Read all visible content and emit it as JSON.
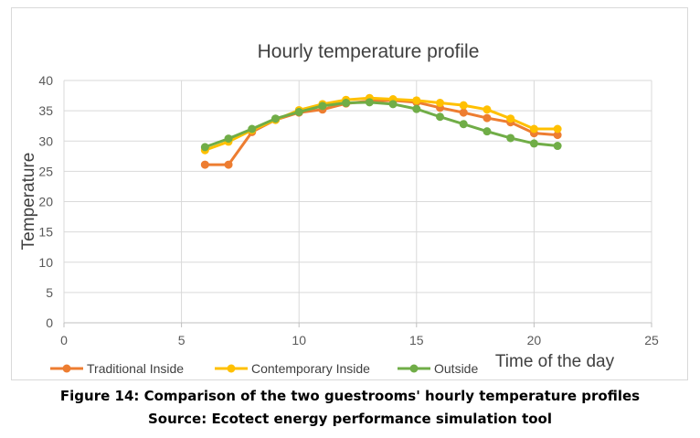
{
  "chart_data": {
    "type": "line",
    "title": "Hourly temperature profile",
    "xlabel": "Time of the day",
    "ylabel": "Temperature",
    "xlim": [
      0,
      25
    ],
    "ylim": [
      0,
      40
    ],
    "xticks": [
      0,
      5,
      10,
      15,
      20,
      25
    ],
    "yticks": [
      0,
      5,
      10,
      15,
      20,
      25,
      30,
      35,
      40
    ],
    "grid": true,
    "legend_position": "bottom-left",
    "x": [
      6,
      7,
      8,
      9,
      10,
      11,
      12,
      13,
      14,
      15,
      16,
      17,
      18,
      19,
      20,
      21
    ],
    "series": [
      {
        "name": "Traditional Inside",
        "color": "#ED7D31",
        "values": [
          26.1,
          26.1,
          31.5,
          33.5,
          34.7,
          35.2,
          36.2,
          36.6,
          36.7,
          36.4,
          35.5,
          34.7,
          33.8,
          33.1,
          31.3,
          31.0
        ]
      },
      {
        "name": "Contemporary Inside",
        "color": "#FFC000",
        "values": [
          28.5,
          29.9,
          31.8,
          33.5,
          35.1,
          36.1,
          36.8,
          37.1,
          36.9,
          36.7,
          36.3,
          35.9,
          35.2,
          33.7,
          32.0,
          32.0
        ]
      },
      {
        "name": "Outside",
        "color": "#70AD47",
        "values": [
          29.0,
          30.4,
          32.0,
          33.7,
          34.8,
          35.8,
          36.3,
          36.4,
          36.1,
          35.3,
          34.0,
          32.8,
          31.6,
          30.5,
          29.6,
          29.2
        ]
      }
    ]
  },
  "caption": {
    "line1": "Figure 14: Comparison of the two guestrooms' hourly temperature profiles",
    "line2": "Source: Ecotect energy performance simulation tool"
  }
}
